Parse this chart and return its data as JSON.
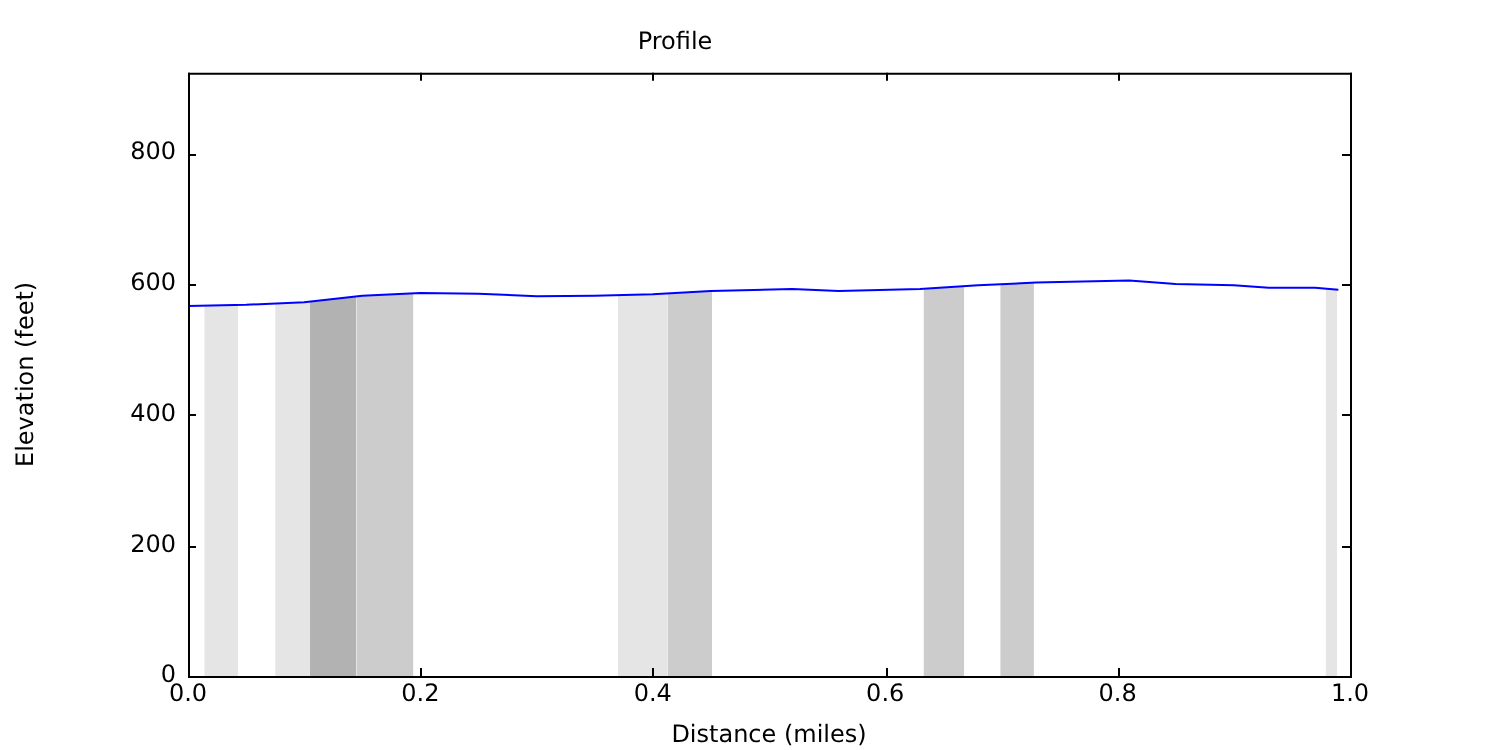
{
  "chart_data": {
    "type": "line",
    "title": "Profile",
    "xlabel": "Distance (miles)",
    "ylabel": "Elevation (feet)",
    "xlim": [
      0,
      1
    ],
    "xticks": [
      {
        "value": 0,
        "label": "0.0"
      },
      {
        "value": 0.2,
        "label": "0.2"
      },
      {
        "value": 0.4,
        "label": "0.4"
      },
      {
        "value": 0.6,
        "label": "0.6"
      },
      {
        "value": 0.8,
        "label": "0.8"
      },
      {
        "value": 1,
        "label": "1.0"
      }
    ],
    "ylim": [
      0,
      923
    ],
    "yticks": [
      0,
      200,
      400,
      600,
      800
    ],
    "grid": false,
    "legend": false,
    "series": [
      {
        "type": "area",
        "color": "#e5e5e5",
        "x": [
          0.014,
          0.043
        ],
        "values": [
          566,
          567
        ]
      },
      {
        "type": "area",
        "color": "#e5e5e5",
        "x": [
          0.075,
          0.105
        ],
        "values": [
          569,
          573
        ]
      },
      {
        "type": "area",
        "color": "#b2b2b2",
        "x": [
          0.105,
          0.145
        ],
        "values": [
          573,
          581
        ]
      },
      {
        "type": "area",
        "color": "#cccccc",
        "x": [
          0.145,
          0.194
        ],
        "values": [
          581,
          586
        ]
      },
      {
        "type": "area",
        "color": "#e5e5e5",
        "x": [
          0.37,
          0.413
        ],
        "values": [
          583,
          585
        ]
      },
      {
        "type": "area",
        "color": "#cccccc",
        "x": [
          0.413,
          0.451
        ],
        "values": [
          585,
          589
        ]
      },
      {
        "type": "area",
        "color": "#cccccc",
        "x": [
          0.633,
          0.668
        ],
        "values": [
          592,
          597
        ]
      },
      {
        "type": "area",
        "color": "#cccccc",
        "x": [
          0.699,
          0.728
        ],
        "values": [
          598,
          602
        ]
      },
      {
        "type": "area",
        "color": "#e5e5e5",
        "x": [
          0.979,
          0.989
        ],
        "values": [
          593,
          591
        ]
      },
      {
        "color": "#0000ff",
        "x": [
          0,
          0.05,
          0.1,
          0.15,
          0.2,
          0.25,
          0.3,
          0.35,
          0.4,
          0.45,
          0.52,
          0.56,
          0.63,
          0.68,
          0.73,
          0.81,
          0.85,
          0.9,
          0.93,
          0.97,
          0.99
        ],
        "values": [
          566,
          568,
          572,
          582,
          586,
          585,
          581,
          582,
          584,
          589,
          592,
          589,
          592,
          598,
          602,
          605,
          600,
          598,
          594,
          594,
          591
        ]
      }
    ]
  }
}
